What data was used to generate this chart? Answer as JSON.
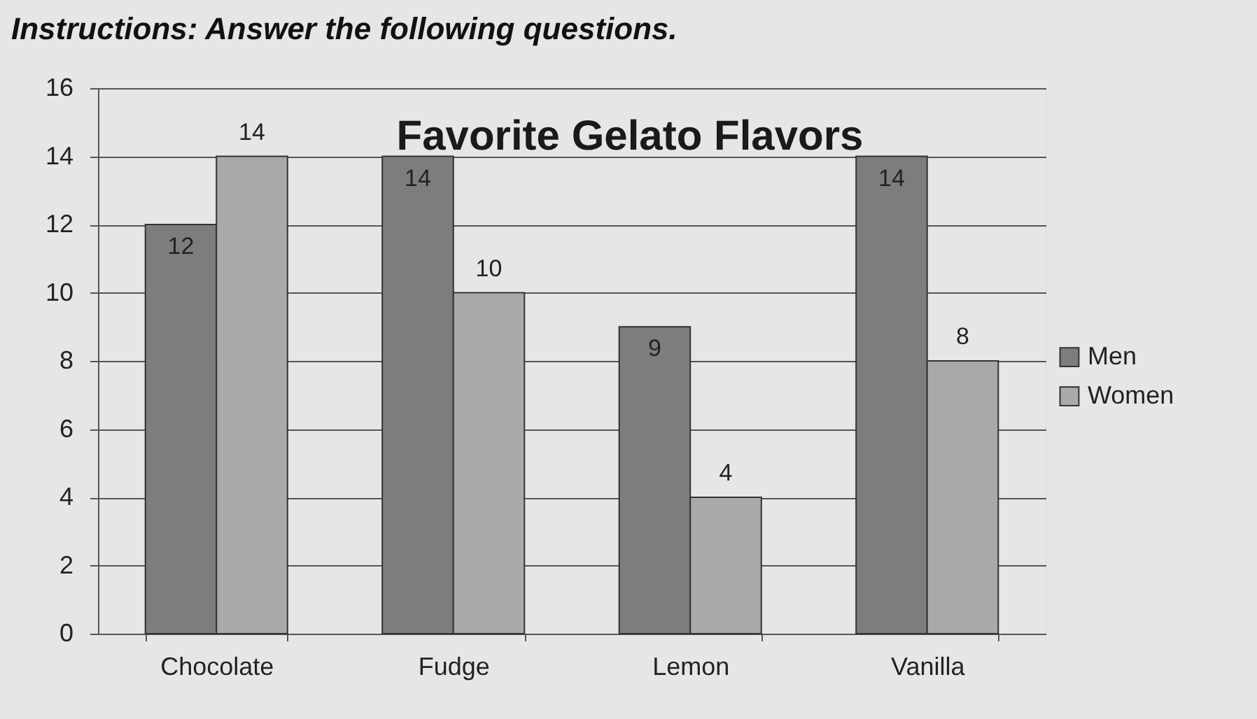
{
  "chart_data": {
    "type": "bar",
    "title": "Favorite Gelato Flavors",
    "annotations": [
      "Instructions: Answer the following questions."
    ],
    "categories": [
      "Chocolate",
      "Fudge",
      "Lemon",
      "Vanilla"
    ],
    "series": [
      {
        "name": "Men",
        "color": "#7d7d7d",
        "values": [
          12,
          14,
          9,
          14
        ]
      },
      {
        "name": "Women",
        "color": "#a9a9a9",
        "values": [
          14,
          10,
          4,
          8
        ]
      }
    ],
    "ylim": [
      0,
      16
    ],
    "yticks": [
      0,
      2,
      4,
      6,
      8,
      10,
      12,
      14,
      16
    ],
    "grid": "y",
    "legend": "right",
    "data_labels": true
  }
}
